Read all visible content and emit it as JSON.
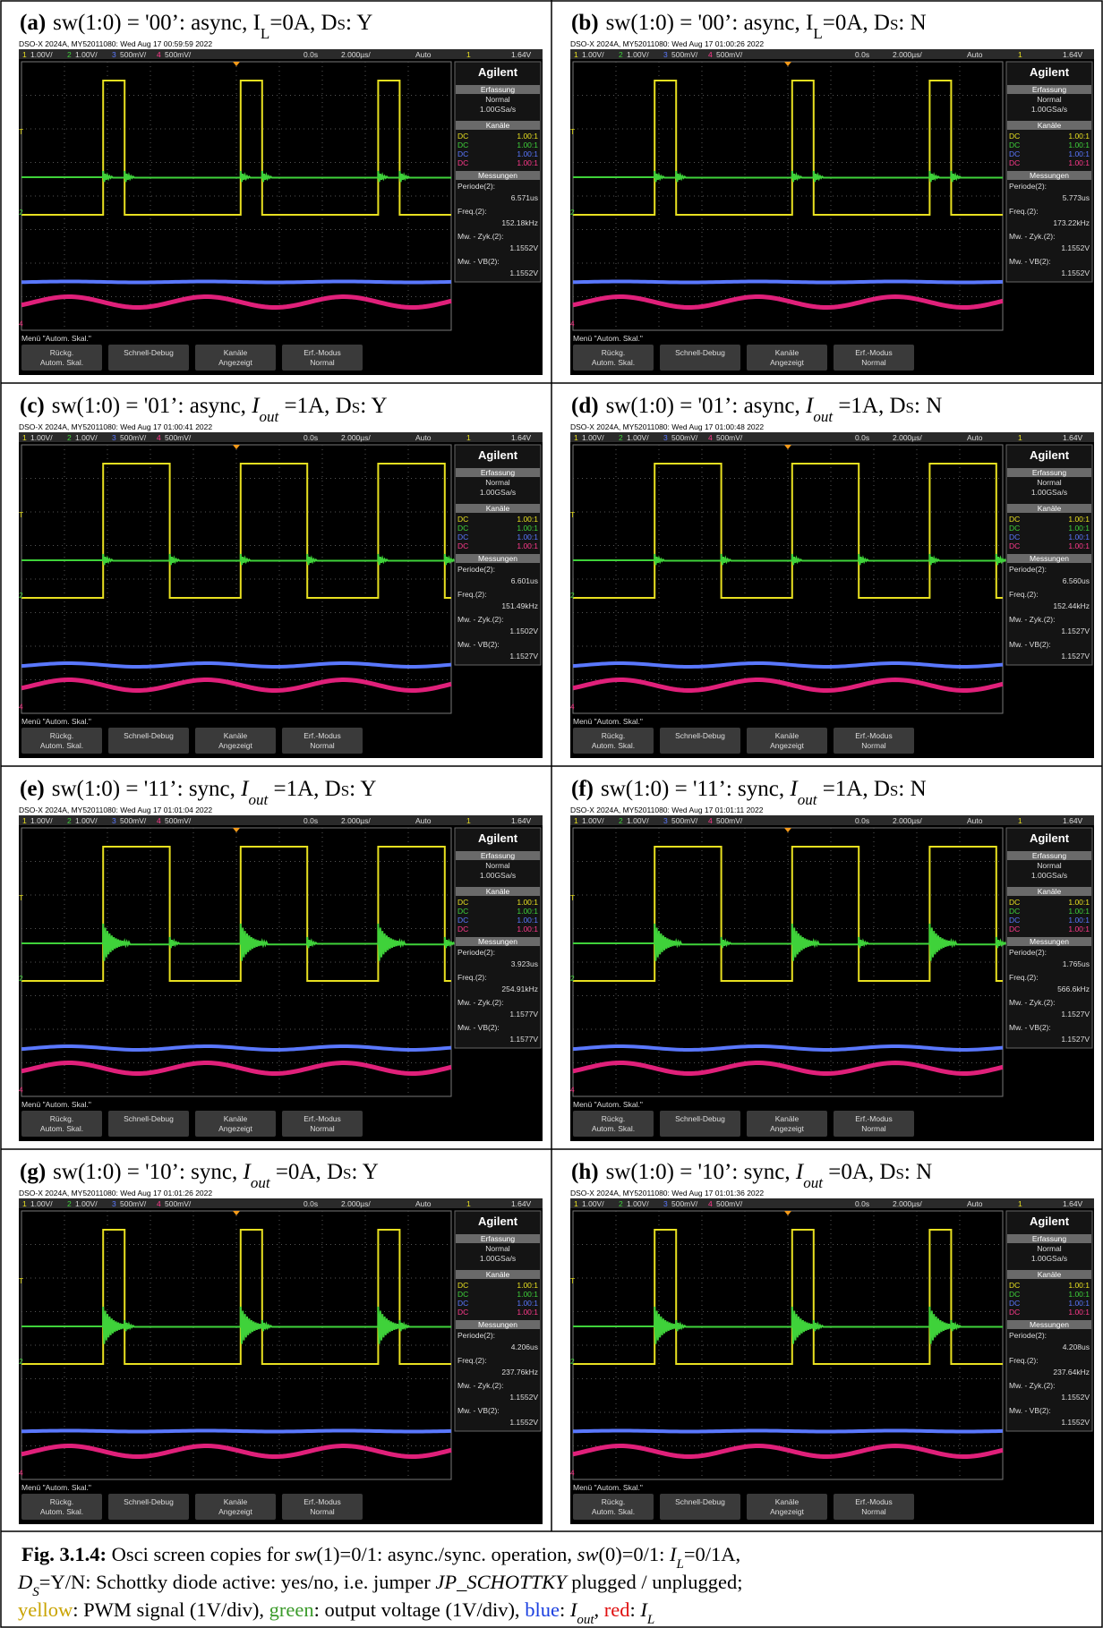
{
  "panels": [
    {
      "label": "(a)",
      "caption": {
        "pre": "sw(1:0) = '00’: async, ",
        "cur": "I",
        "cur_sub": "L",
        "mid": "=0A, D",
        "d_sub": "S",
        "post": ": Y"
      },
      "header": "DSO-X 2024A, MY52011080: Wed Aug 17 00:59:59 2022",
      "periode": "6.571us",
      "freq": "152.18kHz",
      "zyk": "1.1552V",
      "vb": "1.1552V"
    },
    {
      "label": "(b)",
      "caption": {
        "pre": "sw(1:0) = '00’: async, ",
        "cur": "I",
        "cur_sub": "L",
        "mid": "=0A, D",
        "d_sub": "S",
        "post": ": N"
      },
      "header": "DSO-X 2024A, MY52011080: Wed Aug 17 01:00:26 2022",
      "periode": "5.773us",
      "freq": "173.22kHz",
      "zyk": "1.1552V",
      "vb": "1.1552V"
    },
    {
      "label": "(c)",
      "caption": {
        "pre": "sw(1:0) = '01’: async, ",
        "cur": "I",
        "cur_sub": "out",
        "mid": " =1A, D",
        "d_sub": "S",
        "post": ": Y"
      },
      "header": "DSO-X 2024A, MY52011080: Wed Aug 17 01:00:41 2022",
      "periode": "6.601us",
      "freq": "151.49kHz",
      "zyk": "1.1502V",
      "vb": "1.1527V"
    },
    {
      "label": "(d)",
      "caption": {
        "pre": "sw(1:0) = '01’: async, ",
        "cur": "I",
        "cur_sub": "out",
        "mid": " =1A, D",
        "d_sub": "S",
        "post": ": N"
      },
      "header": "DSO-X 2024A, MY52011080: Wed Aug 17 01:00:48 2022",
      "periode": "6.560us",
      "freq": "152.44kHz",
      "zyk": "1.1527V",
      "vb": "1.1527V"
    },
    {
      "label": "(e)",
      "caption": {
        "pre": "sw(1:0) = '11’: sync, ",
        "cur": "I",
        "cur_sub": "out",
        "mid": " =1A, D",
        "d_sub": "S",
        "post": ": Y"
      },
      "header": "DSO-X 2024A, MY52011080: Wed Aug 17 01:01:04 2022",
      "periode": "3.923us",
      "freq": "254.91kHz",
      "zyk": "1.1577V",
      "vb": "1.1577V"
    },
    {
      "label": "(f)",
      "caption": {
        "pre": "sw(1:0) = '11’: sync, ",
        "cur": "I",
        "cur_sub": "out",
        "mid": " =1A, D",
        "d_sub": "S",
        "post": ": N"
      },
      "header": "DSO-X 2024A, MY52011080: Wed Aug 17 01:01:11 2022",
      "periode": "1.765us",
      "freq": "566.6kHz",
      "zyk": "1.1527V",
      "vb": "1.1527V"
    },
    {
      "label": "(g)",
      "caption": {
        "pre": "sw(1:0) = '10’: sync, ",
        "cur": "I",
        "cur_sub": "out",
        "mid": " =0A, D",
        "d_sub": "S",
        "post": ": Y"
      },
      "header": "DSO-X 2024A, MY52011080: Wed Aug 17 01:01:26 2022",
      "periode": "4.206us",
      "freq": "237.76kHz",
      "zyk": "1.1552V",
      "vb": "1.1552V"
    },
    {
      "label": "(h)",
      "caption": {
        "pre": "sw(1:0) = '10’: sync, ",
        "cur": "I",
        "cur_sub": "out",
        "mid": " =0A, D",
        "d_sub": "S",
        "post": ": N"
      },
      "header": "DSO-X 2024A, MY52011080: Wed Aug 17 01:01:36 2022",
      "periode": "4.208us",
      "freq": "237.64kHz",
      "zyk": "1.1552V",
      "vb": "1.1552V"
    }
  ],
  "scope": {
    "channels": [
      {
        "num": "1",
        "scale": "1.00V/"
      },
      {
        "num": "2",
        "scale": "1.00V/"
      },
      {
        "num": "3",
        "scale": "500mV/"
      },
      {
        "num": "4",
        "scale": "500mV/"
      }
    ],
    "time_offset": "0.0s",
    "time_scale": "2.000µs/",
    "trigger_mode": "Auto",
    "trigger_source": "1",
    "trigger_level": "1.64V",
    "brand": "Agilent",
    "acq_title": "Erfassung",
    "acq_mode": "Normal",
    "acq_rate": "1.00GSa/s",
    "ch_title": "Kanäle",
    "coupling": "DC",
    "probe": "1.00:1",
    "meas_title": "Messungen",
    "periode_label": "Periode(2):",
    "freq_label": "Freq.(2):",
    "zyk_label": "Mw. - Zyk.(2):",
    "vb_label": "Mw. - VB(2):",
    "menu": "Menü \"Autom. Skal.\"",
    "buttons": [
      [
        "Rückg.",
        "Autom. Skal."
      ],
      [
        "Schnell-Debug"
      ],
      [
        "Kanäle",
        "Angezeigt"
      ],
      [
        "Erf.-Modus",
        "Normal"
      ]
    ],
    "markers": [
      "T",
      "2",
      "4"
    ]
  },
  "caption": {
    "lines": [
      [
        "Fig. 3.1.4:",
        " Osci screen copies for ",
        "sw",
        "(1)=0/1: async./sync. operation, ",
        "sw",
        "(0)=0/1: ",
        "I",
        "L",
        "=0/1A,"
      ],
      [
        "D",
        "S",
        "=Y/N: Schottky diode active: yes/no, i.e. jumper ",
        "JP_SCHOTTKY",
        " plugged / unplugged;"
      ],
      [
        "yellow",
        ": PWM signal (1V/div), ",
        "green",
        ": output voltage (1V/div), ",
        "blue",
        ": ",
        "I",
        "out",
        ", ",
        "red",
        ": ",
        "I",
        "L"
      ]
    ]
  }
}
